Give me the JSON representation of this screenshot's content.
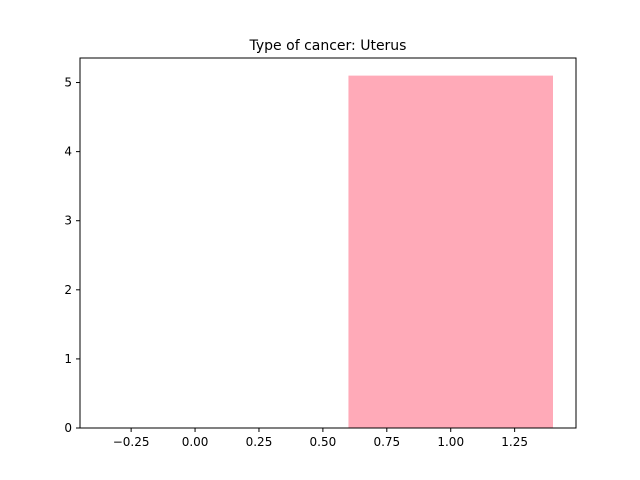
{
  "chart_data": {
    "type": "bar",
    "title": "Type of cancer: Uterus",
    "xlabel": "",
    "ylabel": "",
    "x": [
      1.0
    ],
    "values": [
      5.1
    ],
    "bar_width": 0.8,
    "xlim": [
      -0.45,
      1.49
    ],
    "ylim": [
      0,
      5.355
    ],
    "xticks": [
      -0.25,
      0.0,
      0.25,
      0.5,
      0.75,
      1.0,
      1.25
    ],
    "xtick_labels": [
      "−0.25",
      "0.00",
      "0.25",
      "0.50",
      "0.75",
      "1.00",
      "1.25"
    ],
    "yticks": [
      0,
      1,
      2,
      3,
      4,
      5
    ],
    "ytick_labels": [
      "0",
      "1",
      "2",
      "3",
      "4",
      "5"
    ],
    "grid": false,
    "colors": {
      "bar": "#ffaab8",
      "axes": "#000000"
    }
  }
}
